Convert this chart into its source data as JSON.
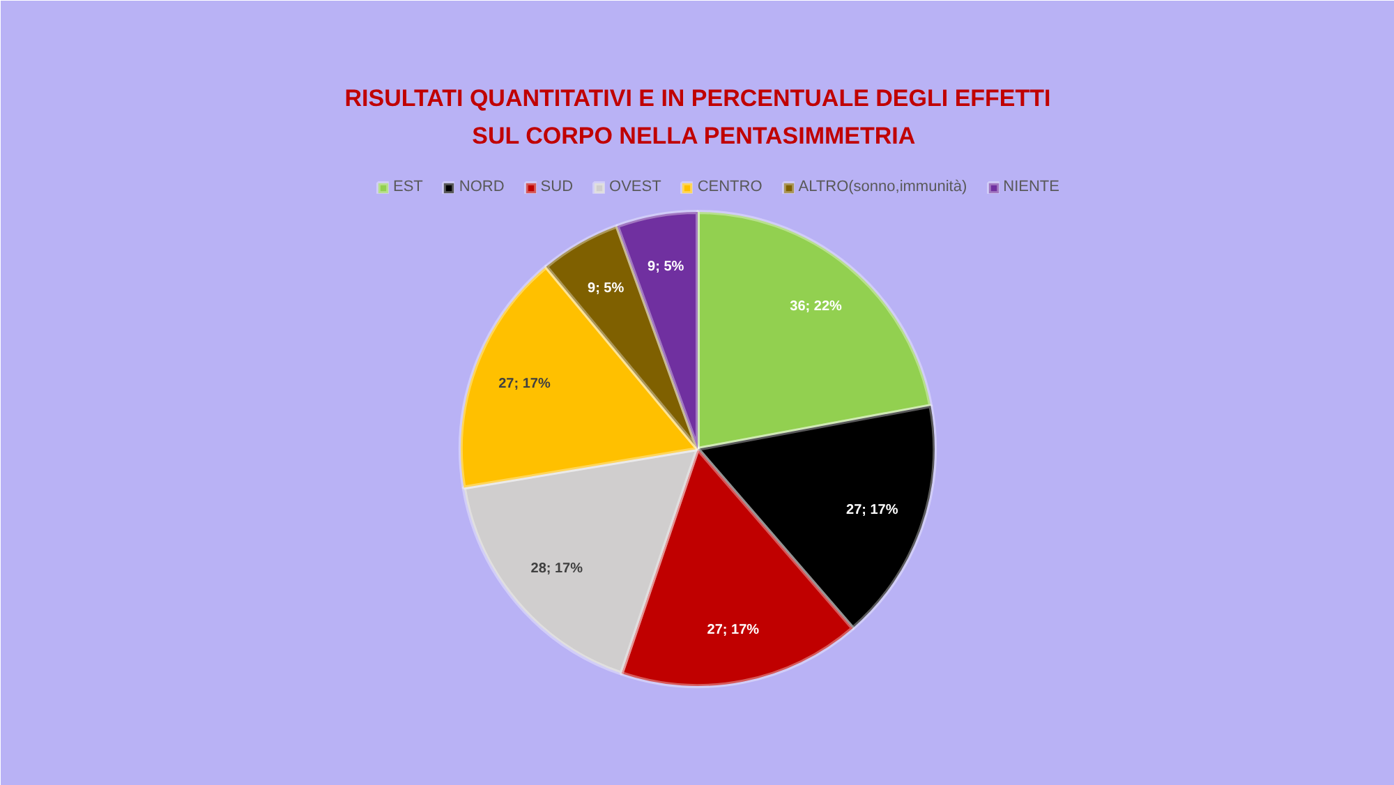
{
  "chart_data": {
    "type": "pie",
    "title": "RISULTATI QUANTITATIVI E IN PERCENTUALE DEGLI EFFETTI\nSUL CORPO  NELLA PENTASIMMETRIA",
    "categories": [
      "EST",
      "NORD",
      "SUD",
      "OVEST",
      "CENTRO",
      "ALTRO(sonno,immunità)",
      "NIENTE"
    ],
    "values": [
      36,
      27,
      27,
      28,
      27,
      9,
      9
    ],
    "colors": [
      "#92d050",
      "#000000",
      "#c00000",
      "#d0cece",
      "#ffc000",
      "#7f6000",
      "#7030a0"
    ],
    "value_labels": [
      "36; 22%",
      "27; 17%",
      "27; 17%",
      "28; 17%",
      "27; 17%",
      "9; 5%",
      "9; 5%"
    ],
    "legend": "top"
  }
}
